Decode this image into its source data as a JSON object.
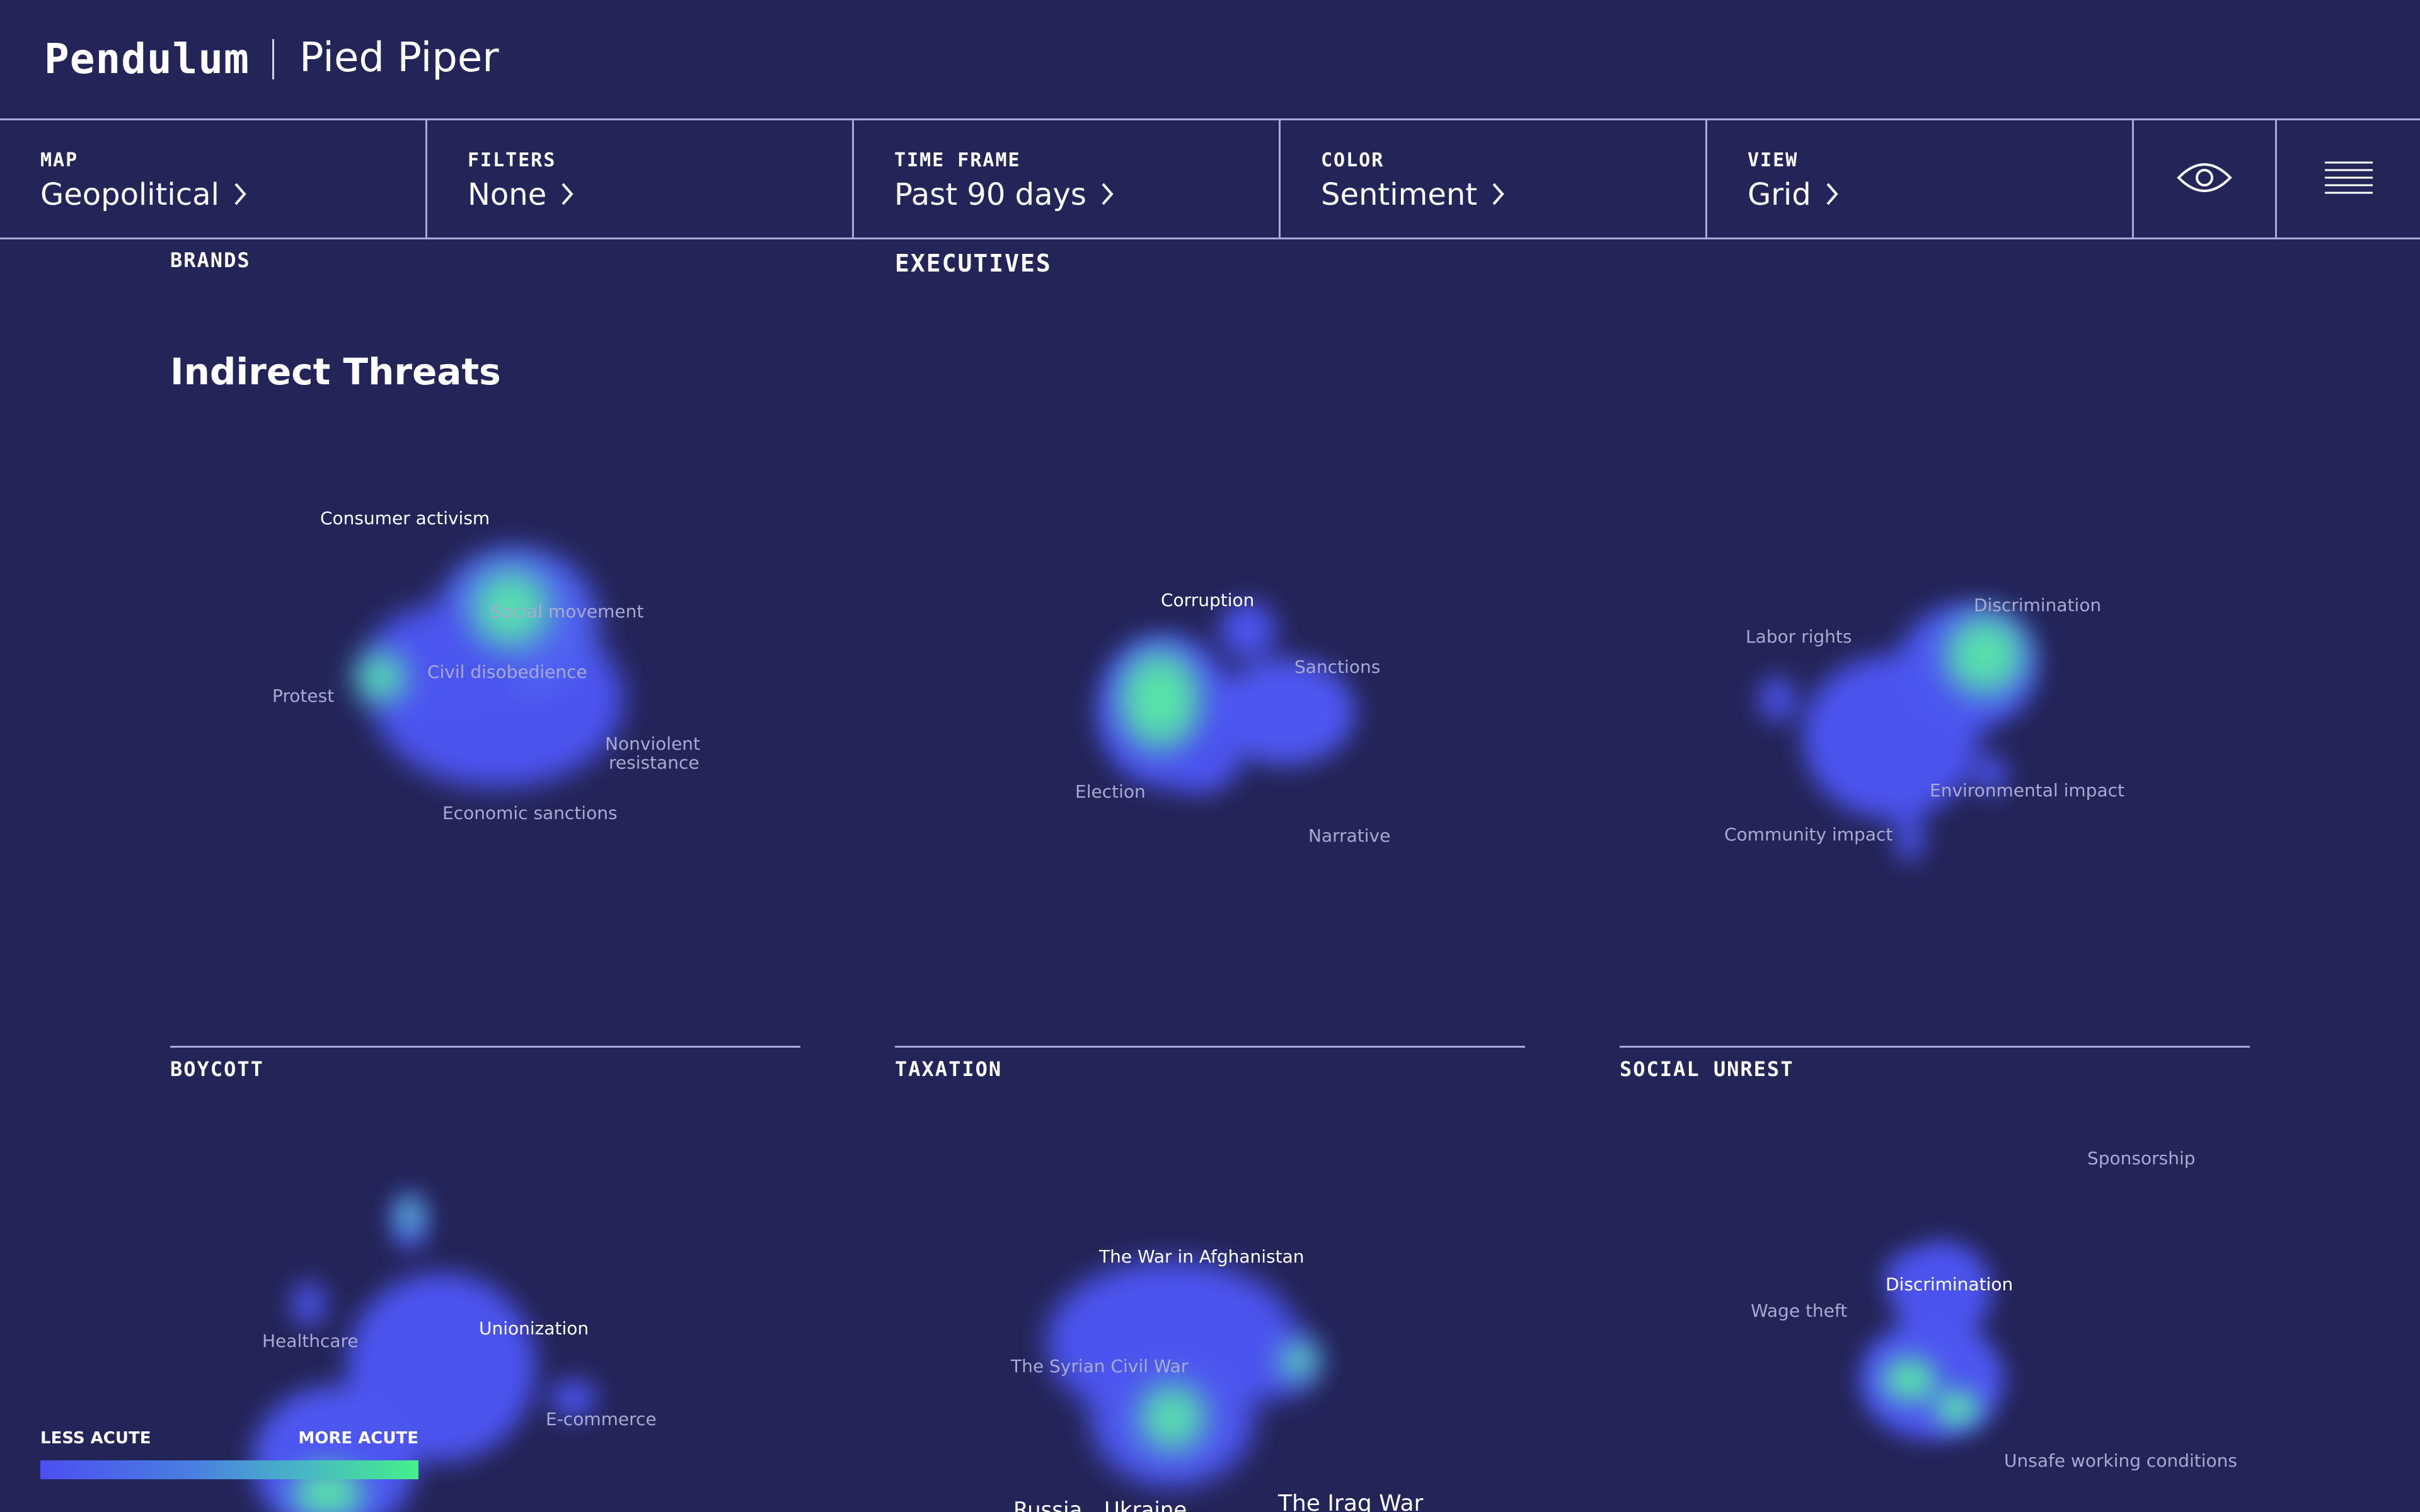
{
  "header": {
    "brand": "Pendulum",
    "client": "Pied Piper"
  },
  "toolbar": {
    "items": [
      {
        "label": "MAP",
        "value": "Geopolitical"
      },
      {
        "label": "FILTERS",
        "value": "None"
      },
      {
        "label": "TIME FRAME",
        "value": "Past 90 days"
      },
      {
        "label": "COLOR",
        "value": "Sentiment"
      },
      {
        "label": "VIEW",
        "value": "Grid"
      }
    ],
    "icons": [
      "eye-icon",
      "menu-icon"
    ]
  },
  "sections": {
    "brands": "BRANDS",
    "executives": "EXECUTIVES",
    "indirect_threats": "Indirect Threats"
  },
  "colors": {
    "background": "#232457",
    "cool": "#4d55f2",
    "hot": "#4cf08c"
  },
  "panels": [
    {
      "id": "p1",
      "title": "",
      "nodes": [
        {
          "text": "Consumer activism",
          "hi": true
        },
        {
          "text": "Social movement",
          "hi": false
        },
        {
          "text": "Civil disobedience",
          "hi": false
        },
        {
          "text": "Protest",
          "hi": false
        },
        {
          "text": "Nonviolent",
          "hi": false
        },
        {
          "text": "resistance",
          "hi": false
        },
        {
          "text": "Economic sanctions",
          "hi": false
        }
      ]
    },
    {
      "id": "p2",
      "title": "",
      "nodes": [
        {
          "text": "Corruption",
          "hi": true
        },
        {
          "text": "Sanctions",
          "hi": false
        },
        {
          "text": "Election",
          "hi": false
        },
        {
          "text": "Narrative",
          "hi": false
        }
      ]
    },
    {
      "id": "p3",
      "title": "",
      "nodes": [
        {
          "text": "Discrimination",
          "hi": false
        },
        {
          "text": "Labor rights",
          "hi": false
        },
        {
          "text": "Environmental impact",
          "hi": false
        },
        {
          "text": "Community impact",
          "hi": false
        }
      ]
    },
    {
      "id": "p4",
      "title": "BOYCOTT",
      "nodes": [
        {
          "text": "Unionization",
          "hi": true
        },
        {
          "text": "Healthcare",
          "hi": false
        },
        {
          "text": "E-commerce",
          "hi": false
        }
      ]
    },
    {
      "id": "p5",
      "title": "TAXATION",
      "nodes": [
        {
          "text": "The War in Afghanistan",
          "hi": true
        },
        {
          "text": "The Syrian Civil War",
          "hi": false
        },
        {
          "text": "Russia",
          "hi": true
        },
        {
          "text": "Ukraine",
          "hi": true
        },
        {
          "text": "The Iraq War",
          "hi": true
        }
      ]
    },
    {
      "id": "p6",
      "title": "SOCIAL UNREST",
      "nodes": [
        {
          "text": "Sponsorship",
          "hi": false
        },
        {
          "text": "Discrimination",
          "hi": true
        },
        {
          "text": "Wage theft",
          "hi": false
        },
        {
          "text": "Unsafe working conditions",
          "hi": false
        }
      ]
    }
  ],
  "legend": {
    "less": "LESS ACUTE",
    "more": "MORE ACUTE"
  }
}
